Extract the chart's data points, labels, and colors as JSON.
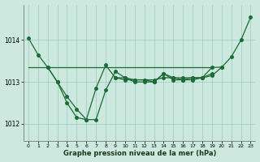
{
  "hours": [
    0,
    1,
    2,
    3,
    4,
    5,
    6,
    7,
    8,
    9,
    10,
    11,
    12,
    13,
    14,
    15,
    16,
    17,
    18,
    19,
    20,
    21,
    22,
    23
  ],
  "line_main": [
    1014.05,
    1013.65,
    1013.35,
    1013.0,
    1012.65,
    1012.35,
    1012.1,
    1012.1,
    1012.8,
    1013.25,
    1013.1,
    1013.05,
    1013.05,
    1013.0,
    1013.2,
    1013.1,
    1013.05,
    1013.05,
    1013.1,
    1013.15,
    1013.35,
    1013.6,
    1014.0,
    1014.55
  ],
  "line_curve2_x": [
    2,
    3,
    4,
    5,
    6,
    7,
    8,
    9,
    10,
    11,
    12,
    13,
    14,
    15,
    16,
    17,
    18,
    19,
    20
  ],
  "line_curve2_y": [
    1013.35,
    1013.0,
    1012.5,
    1012.15,
    1012.1,
    1012.85,
    1013.4,
    1013.1,
    1013.1,
    1013.0,
    1013.0,
    1013.0,
    1013.2,
    1013.05,
    1013.05,
    1013.1,
    1013.1,
    1013.35,
    1013.35
  ],
  "line_flat1_x": [
    0,
    1,
    2,
    3,
    4,
    5,
    6,
    7,
    8,
    9,
    10,
    11,
    12,
    13,
    14,
    15,
    16,
    17,
    18,
    19
  ],
  "line_flat1_y": [
    1013.35,
    1013.35,
    1013.35,
    1013.35,
    1013.35,
    1013.35,
    1013.35,
    1013.35,
    1013.35,
    1013.35,
    1013.35,
    1013.35,
    1013.35,
    1013.35,
    1013.35,
    1013.35,
    1013.35,
    1013.35,
    1013.35,
    1013.35
  ],
  "line_flat2_x": [
    9,
    10,
    11,
    12,
    13,
    14,
    15,
    16,
    17,
    18,
    19
  ],
  "line_flat2_y": [
    1013.1,
    1013.05,
    1013.05,
    1013.05,
    1013.05,
    1013.1,
    1013.1,
    1013.1,
    1013.1,
    1013.1,
    1013.2
  ],
  "bg_color": "#cce8df",
  "grid_color": "#99ccbb",
  "line_color": "#1a6b35",
  "xlabel": "Graphe pression niveau de la mer (hPa)",
  "ylim": [
    1011.6,
    1014.85
  ],
  "xlim": [
    -0.5,
    23.5
  ],
  "yticks": [
    1012,
    1013,
    1014
  ],
  "xticks": [
    0,
    1,
    2,
    3,
    4,
    5,
    6,
    7,
    8,
    9,
    10,
    11,
    12,
    13,
    14,
    15,
    16,
    17,
    18,
    19,
    20,
    21,
    22,
    23
  ],
  "xtick_labels": [
    "0",
    "1",
    "2",
    "3",
    "4",
    "5",
    "6",
    "7",
    "8",
    "9",
    "10",
    "11",
    "12",
    "13",
    "14",
    "15",
    "16",
    "17",
    "18",
    "19",
    "20",
    "21",
    "22",
    "23"
  ]
}
